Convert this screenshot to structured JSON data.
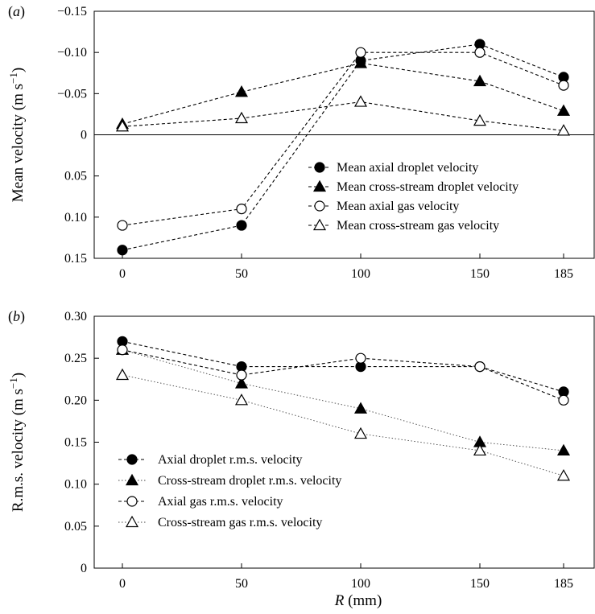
{
  "figure": {
    "xlabel_italic": "R",
    "xlabel_rest": " (mm)"
  },
  "chart_data": [
    {
      "type": "line",
      "panel_label": "a",
      "ylabel": "Mean velocity (m s",
      "ylabel_sup": "−1",
      "ylabel_close": ")",
      "x": [
        0,
        50,
        100,
        150,
        185
      ],
      "x_tick_labels": [
        "0",
        "50",
        "100",
        "150",
        "185"
      ],
      "ylim": [
        0.15,
        -0.15
      ],
      "y_inverted": true,
      "yticks": [
        -0.15,
        -0.1,
        -0.05,
        0,
        0.05,
        0.1,
        0.15
      ],
      "y_tick_labels": [
        "−0.15",
        "−0.10",
        "−0.05",
        "0",
        "0.05",
        "0.10",
        "0.15"
      ],
      "zero_line": true,
      "grid": false,
      "legend_position": "lower-right",
      "series": [
        {
          "name": "Mean axial droplet velocity",
          "marker": "circle",
          "filled": true,
          "line": "dashed",
          "values": [
            0.14,
            0.11,
            -0.09,
            -0.11,
            -0.07
          ]
        },
        {
          "name": "Mean cross-stream droplet velocity",
          "marker": "triangle",
          "filled": true,
          "line": "dashed",
          "values": [
            -0.013,
            -0.052,
            -0.087,
            -0.065,
            -0.029
          ]
        },
        {
          "name": "Mean axial gas velocity",
          "marker": "circle",
          "filled": false,
          "line": "dashed",
          "values": [
            0.11,
            0.09,
            -0.1,
            -0.1,
            -0.06
          ]
        },
        {
          "name": "Mean cross-stream gas velocity",
          "marker": "triangle",
          "filled": false,
          "line": "dashed",
          "values": [
            -0.01,
            -0.02,
            -0.04,
            -0.017,
            -0.005
          ]
        }
      ]
    },
    {
      "type": "line",
      "panel_label": "b",
      "ylabel": "R.m.s. velocity (m s",
      "ylabel_sup": "−1",
      "ylabel_close": ")",
      "x": [
        0,
        50,
        100,
        150,
        185
      ],
      "x_tick_labels": [
        "0",
        "50",
        "100",
        "150",
        "185"
      ],
      "ylim": [
        0,
        0.3
      ],
      "y_inverted": false,
      "yticks": [
        0,
        0.05,
        0.1,
        0.15,
        0.2,
        0.25,
        0.3
      ],
      "y_tick_labels": [
        "0",
        "0.05",
        "0.10",
        "0.15",
        "0.20",
        "0.25",
        "0.30"
      ],
      "zero_line": false,
      "grid": false,
      "legend_position": "lower-left",
      "series": [
        {
          "name": "Axial droplet r.m.s. velocity",
          "marker": "circle",
          "filled": true,
          "line": "dashed",
          "values": [
            0.27,
            0.24,
            0.24,
            0.24,
            0.21
          ]
        },
        {
          "name": "Cross-stream droplet r.m.s. velocity",
          "marker": "triangle",
          "filled": true,
          "line": "dotted",
          "values": [
            0.26,
            0.22,
            0.19,
            0.15,
            0.14
          ]
        },
        {
          "name": "Axial gas r.m.s. velocity",
          "marker": "circle",
          "filled": false,
          "line": "dashed",
          "values": [
            0.26,
            0.23,
            0.25,
            0.24,
            0.2
          ]
        },
        {
          "name": "Cross-stream gas r.m.s. velocity",
          "marker": "triangle",
          "filled": false,
          "line": "dotted",
          "values": [
            0.23,
            0.2,
            0.16,
            0.14,
            0.11
          ]
        }
      ]
    }
  ]
}
